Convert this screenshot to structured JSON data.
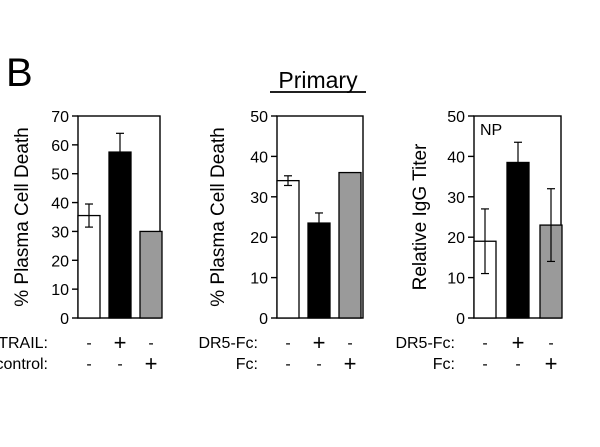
{
  "panel_label": "B",
  "section_title": "Primary",
  "chart_data": [
    {
      "type": "bar",
      "ylabel": "% Plasma Cell Death",
      "ylim": [
        0,
        70
      ],
      "yticks": [
        0,
        10,
        20,
        30,
        40,
        50,
        60,
        70
      ],
      "annotation": "",
      "categories": [
        "1",
        "2",
        "3"
      ],
      "values": [
        35.5,
        57.5,
        30
      ],
      "errors": [
        4,
        6.5,
        null
      ],
      "fills": [
        "#ffffff",
        "#000000",
        "#9a9a9a"
      ],
      "treatments": [
        {
          "label": "mTRAIL:",
          "marks": [
            "-",
            "+",
            "-"
          ]
        },
        {
          "label": "control:",
          "marks": [
            "-",
            "-",
            "+"
          ]
        }
      ],
      "grid": false,
      "legend": "none"
    },
    {
      "type": "bar",
      "ylabel": "% Plasma Cell Death",
      "ylim": [
        0,
        50
      ],
      "yticks": [
        0,
        10,
        20,
        30,
        40,
        50
      ],
      "annotation": "",
      "categories": [
        "1",
        "2",
        "3"
      ],
      "values": [
        34,
        23.5,
        36
      ],
      "errors": [
        1.2,
        2.5,
        null
      ],
      "fills": [
        "#ffffff",
        "#000000",
        "#9a9a9a"
      ],
      "treatments": [
        {
          "label": "DR5-Fc:",
          "marks": [
            "-",
            "+",
            "-"
          ]
        },
        {
          "label": "Fc:",
          "marks": [
            "-",
            "-",
            "+"
          ]
        }
      ],
      "grid": false,
      "legend": "none"
    },
    {
      "type": "bar",
      "ylabel": "Relative IgG Titer",
      "ylim": [
        0,
        50
      ],
      "yticks": [
        0,
        10,
        20,
        30,
        40,
        50
      ],
      "annotation": "NP",
      "categories": [
        "1",
        "2",
        "3"
      ],
      "values": [
        19,
        38.5,
        23
      ],
      "errors": [
        8,
        5,
        9
      ],
      "fills": [
        "#ffffff",
        "#000000",
        "#9a9a9a"
      ],
      "treatments": [
        {
          "label": "DR5-Fc:",
          "marks": [
            "-",
            "+",
            "-"
          ]
        },
        {
          "label": "Fc:",
          "marks": [
            "-",
            "-",
            "+"
          ]
        }
      ],
      "grid": false,
      "legend": "none"
    }
  ]
}
